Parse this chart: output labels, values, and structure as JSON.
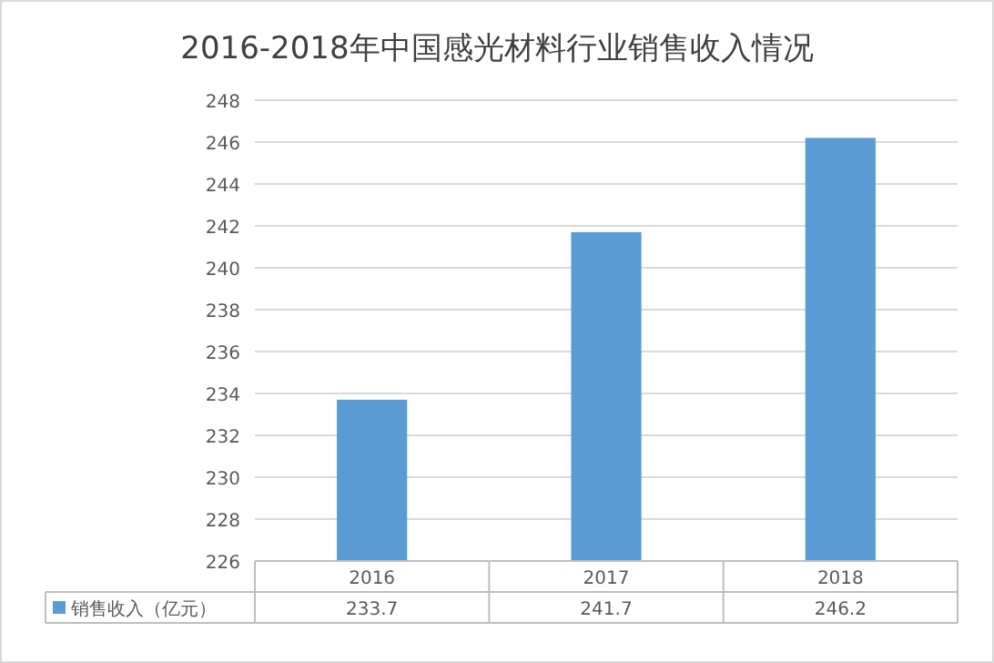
{
  "chart_data": {
    "type": "bar",
    "title": "2016-2018年中国感光材料行业销售收入情况",
    "categories": [
      "2016",
      "2017",
      "2018"
    ],
    "series": [
      {
        "name": "销售收入（亿元）",
        "color": "#5b9bd5",
        "values": [
          233.7,
          241.7,
          246.2
        ]
      }
    ],
    "ylim": [
      226,
      248
    ],
    "yticks": [
      226,
      228,
      230,
      232,
      234,
      236,
      238,
      240,
      242,
      244,
      246,
      248
    ],
    "grid": "y",
    "data_labels": true,
    "legend": "bottom"
  }
}
